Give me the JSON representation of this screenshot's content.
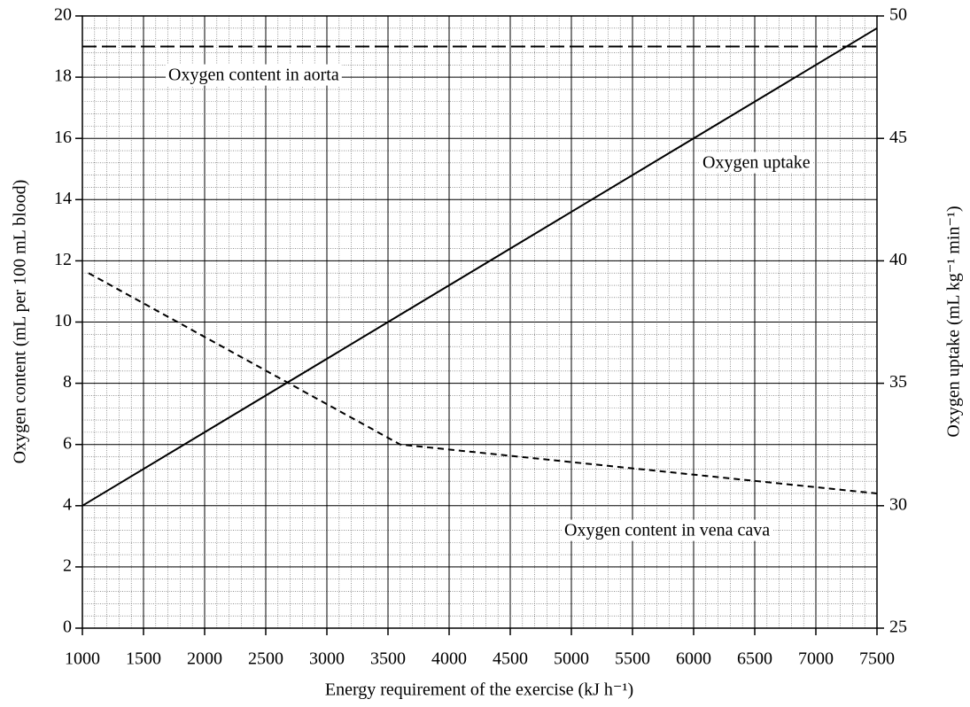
{
  "chart_data": {
    "type": "line",
    "xlabel": "Energy requirement of the exercise (kJ h⁻¹)",
    "ylabel": "Oxygen content (mL per 100 mL blood)",
    "y2label": "Oxygen uptake (mL kg⁻¹ min⁻¹)",
    "xlim": [
      1000,
      7500
    ],
    "xticks": [
      1000,
      1500,
      2000,
      2500,
      3000,
      3500,
      4000,
      4500,
      5000,
      5500,
      6000,
      6500,
      7000,
      7500
    ],
    "ylim": [
      0,
      20
    ],
    "yticks": [
      0,
      2,
      4,
      6,
      8,
      10,
      12,
      14,
      16,
      18,
      20
    ],
    "y2lim": [
      25,
      50
    ],
    "y2ticks": [
      25,
      30,
      35,
      40,
      45,
      50
    ],
    "grid": true,
    "minor_grid": true,
    "series": [
      {
        "name": "Oxygen content in aorta",
        "color": "#000000",
        "dash": "long",
        "x": [
          1000,
          7500
        ],
        "values": [
          19,
          19
        ]
      },
      {
        "name": "Oxygen uptake",
        "color": "#000000",
        "dash": "solid",
        "axis": "y2",
        "x": [
          1000,
          7500
        ],
        "values": [
          30,
          49.5
        ]
      },
      {
        "name": "Oxygen content in vena cava",
        "color": "#000000",
        "dash": "short",
        "x": [
          1050,
          3600,
          7500
        ],
        "values": [
          11.6,
          6.0,
          4.4
        ]
      }
    ]
  }
}
